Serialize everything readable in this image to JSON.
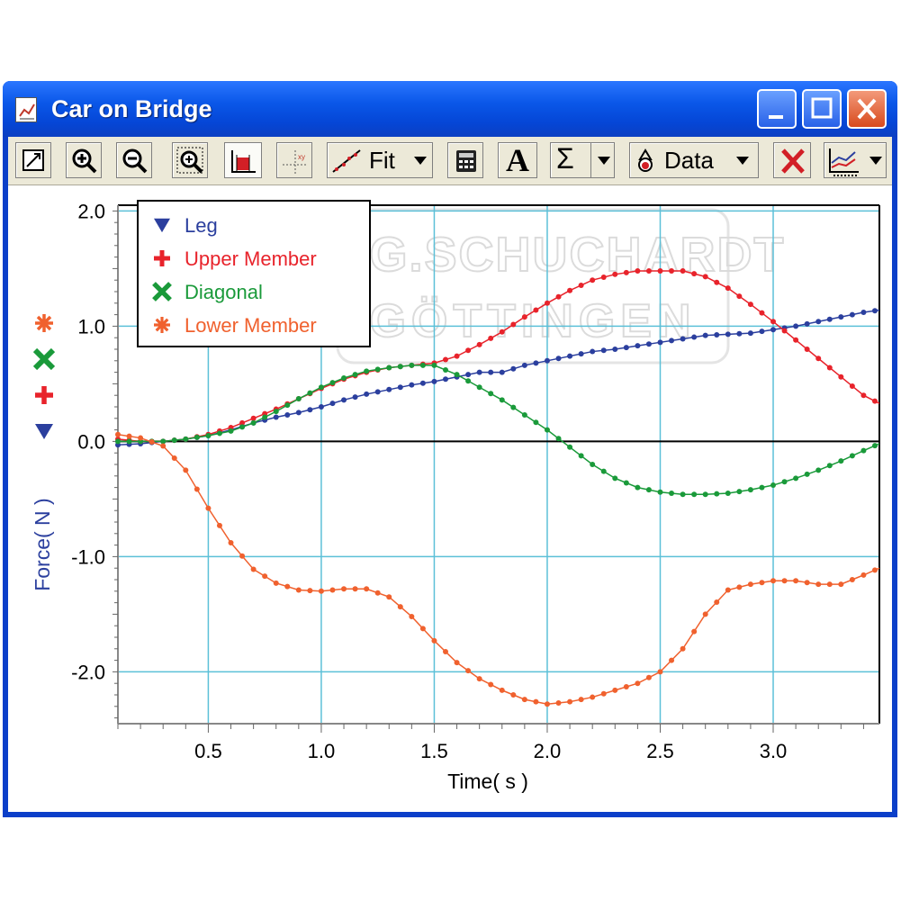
{
  "window": {
    "title": "Car on Bridge",
    "colors": {
      "title_bar": "#0a57e8",
      "toolbar": "#ece9d8",
      "close": "#d84a1d"
    }
  },
  "toolbar": {
    "items": [
      {
        "name": "autoscale-icon"
      },
      {
        "name": "zoom-in-icon"
      },
      {
        "name": "zoom-out-icon"
      },
      {
        "name": "zoom-box-icon"
      },
      {
        "name": "stats-bar-icon"
      },
      {
        "name": "examine-icon"
      },
      {
        "name": "curve-fit-icon",
        "label": "Fit"
      },
      {
        "name": "calculator-icon"
      },
      {
        "name": "text-annotation-icon",
        "label": "A"
      },
      {
        "name": "sigma-icon",
        "label": "Σ"
      },
      {
        "name": "data-icon",
        "label": "Data"
      },
      {
        "name": "delete-icon"
      },
      {
        "name": "graph-options-icon"
      }
    ]
  },
  "chart_data": {
    "type": "line",
    "title": "",
    "xlabel": "Time( s )",
    "ylabel": "Force( N )",
    "xlim": [
      0.1,
      3.47
    ],
    "ylim": [
      -2.45,
      2.05
    ],
    "xticks": [
      "0.5",
      "1.0",
      "1.5",
      "2.0",
      "2.5",
      "3.0"
    ],
    "yticks": [
      "2.0",
      "1.0",
      "0.0",
      "-1.0",
      "-2.0"
    ],
    "grid": true,
    "legend_position": "top-left",
    "x": [
      0.1,
      0.2,
      0.3,
      0.4,
      0.5,
      0.6,
      0.7,
      0.8,
      0.9,
      1.0,
      1.1,
      1.2,
      1.3,
      1.4,
      1.5,
      1.6,
      1.7,
      1.8,
      1.9,
      2.0,
      2.1,
      2.2,
      2.3,
      2.4,
      2.5,
      2.6,
      2.7,
      2.8,
      2.9,
      3.0,
      3.1,
      3.2,
      3.3,
      3.4,
      3.47
    ],
    "series": [
      {
        "name": "Leg",
        "color": "#2b3f9e",
        "marker": "triangle-down",
        "values": [
          -0.03,
          -0.02,
          0.0,
          0.02,
          0.05,
          0.1,
          0.16,
          0.21,
          0.25,
          0.3,
          0.36,
          0.41,
          0.45,
          0.49,
          0.52,
          0.56,
          0.6,
          0.6,
          0.66,
          0.7,
          0.74,
          0.78,
          0.8,
          0.83,
          0.86,
          0.89,
          0.92,
          0.93,
          0.94,
          0.97,
          1.0,
          1.04,
          1.08,
          1.12,
          1.14
        ]
      },
      {
        "name": "Upper Member",
        "color": "#e8232b",
        "marker": "plus",
        "values": [
          0.02,
          0.0,
          0.0,
          0.02,
          0.06,
          0.12,
          0.2,
          0.28,
          0.37,
          0.46,
          0.54,
          0.6,
          0.64,
          0.66,
          0.68,
          0.74,
          0.84,
          0.95,
          1.08,
          1.2,
          1.31,
          1.4,
          1.45,
          1.48,
          1.48,
          1.48,
          1.43,
          1.33,
          1.19,
          1.04,
          0.88,
          0.72,
          0.56,
          0.4,
          0.33
        ]
      },
      {
        "name": "Diagonal",
        "color": "#1a9a3a",
        "marker": "x",
        "values": [
          0.0,
          0.0,
          0.0,
          0.02,
          0.05,
          0.09,
          0.16,
          0.26,
          0.37,
          0.47,
          0.55,
          0.61,
          0.64,
          0.66,
          0.66,
          0.58,
          0.47,
          0.36,
          0.23,
          0.1,
          -0.05,
          -0.2,
          -0.32,
          -0.4,
          -0.44,
          -0.46,
          -0.46,
          -0.45,
          -0.42,
          -0.38,
          -0.32,
          -0.25,
          -0.17,
          -0.08,
          -0.02
        ]
      },
      {
        "name": "Lower Member",
        "color": "#f0612e",
        "marker": "asterisk",
        "values": [
          0.06,
          0.03,
          -0.04,
          -0.25,
          -0.58,
          -0.88,
          -1.11,
          -1.23,
          -1.29,
          -1.3,
          -1.28,
          -1.28,
          -1.35,
          -1.52,
          -1.73,
          -1.92,
          -2.06,
          -2.16,
          -2.24,
          -2.28,
          -2.26,
          -2.22,
          -2.16,
          -2.1,
          -2.0,
          -1.8,
          -1.5,
          -1.29,
          -1.24,
          -1.21,
          -1.21,
          -1.24,
          -1.24,
          -1.16,
          -1.1
        ]
      }
    ],
    "watermark": [
      "DR.G.SCHUCHARDT",
      "GÖTTINGEN"
    ]
  }
}
